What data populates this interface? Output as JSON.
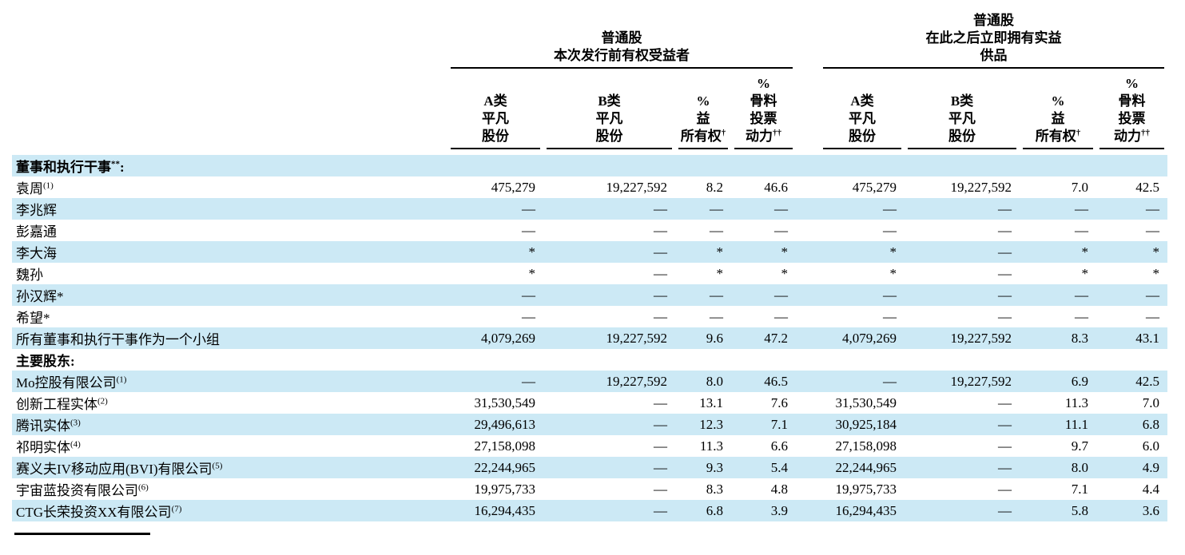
{
  "page": {
    "background": "#ffffff",
    "stripe_color": "#cce9f5"
  },
  "table": {
    "group_headers": [
      {
        "lines": [
          "普通股",
          "本次发行前有权受益者"
        ]
      },
      {
        "lines": [
          "普通股",
          "在此之后立即拥有实益",
          "供品"
        ]
      }
    ],
    "column_headers": [
      {
        "lines": [
          "A类",
          "平凡",
          "股份"
        ],
        "sup": ""
      },
      {
        "lines": [
          "B类",
          "平凡",
          "股份"
        ],
        "sup": ""
      },
      {
        "lines": [
          "%",
          "益",
          "所有权"
        ],
        "sup": "†"
      },
      {
        "lines": [
          "%",
          "骨料",
          "投票",
          "动力"
        ],
        "sup": "††"
      },
      {
        "lines": [
          "A类",
          "平凡",
          "股份"
        ],
        "sup": ""
      },
      {
        "lines": [
          "B类",
          "平凡",
          "股份"
        ],
        "sup": ""
      },
      {
        "lines": [
          "%",
          "益",
          "所有权"
        ],
        "sup": "†"
      },
      {
        "lines": [
          "%",
          "骨料",
          "投票",
          "动力"
        ],
        "sup": "††"
      }
    ],
    "rows": [
      {
        "label": "董事和执行干事",
        "sup": "**",
        "suffix": ":",
        "section": true,
        "shaded": true,
        "cells": [
          "",
          "",
          "",
          "",
          "",
          "",
          "",
          ""
        ]
      },
      {
        "label": "袁周",
        "sup": "(1)",
        "suffix": "",
        "section": false,
        "shaded": false,
        "cells": [
          "475,279",
          "19,227,592",
          "8.2",
          "46.6",
          "475,279",
          "19,227,592",
          "7.0",
          "42.5"
        ]
      },
      {
        "label": "李兆辉",
        "sup": "",
        "suffix": "",
        "section": false,
        "shaded": true,
        "cells": [
          "—",
          "—",
          "—",
          "—",
          "—",
          "—",
          "—",
          "—"
        ]
      },
      {
        "label": "彭嘉通",
        "sup": "",
        "suffix": "",
        "section": false,
        "shaded": false,
        "cells": [
          "—",
          "—",
          "—",
          "—",
          "—",
          "—",
          "—",
          "—"
        ]
      },
      {
        "label": "李大海",
        "sup": "",
        "suffix": "",
        "section": false,
        "shaded": true,
        "cells": [
          "*",
          "—",
          "*",
          "*",
          "*",
          "—",
          "*",
          "*"
        ]
      },
      {
        "label": "魏孙",
        "sup": "",
        "suffix": "",
        "section": false,
        "shaded": false,
        "cells": [
          "*",
          "—",
          "*",
          "*",
          "*",
          "—",
          "*",
          "*"
        ]
      },
      {
        "label": "孙汉辉*",
        "sup": "",
        "suffix": "",
        "section": false,
        "shaded": true,
        "cells": [
          "—",
          "—",
          "—",
          "—",
          "—",
          "—",
          "—",
          "—"
        ]
      },
      {
        "label": "希望*",
        "sup": "",
        "suffix": "",
        "section": false,
        "shaded": false,
        "cells": [
          "—",
          "—",
          "—",
          "—",
          "—",
          "—",
          "—",
          "—"
        ]
      },
      {
        "label": "所有董事和执行干事作为一个小组",
        "sup": "",
        "suffix": "",
        "section": false,
        "shaded": true,
        "cells": [
          "4,079,269",
          "19,227,592",
          "9.6",
          "47.2",
          "4,079,269",
          "19,227,592",
          "8.3",
          "43.1"
        ]
      },
      {
        "label": "主要股东",
        "sup": "",
        "suffix": ":",
        "section": true,
        "shaded": false,
        "cells": [
          "",
          "",
          "",
          "",
          "",
          "",
          "",
          ""
        ]
      },
      {
        "label": "Mo控股有限公司",
        "sup": "(1)",
        "suffix": "",
        "section": false,
        "shaded": true,
        "cells": [
          "—",
          "19,227,592",
          "8.0",
          "46.5",
          "—",
          "19,227,592",
          "6.9",
          "42.5"
        ]
      },
      {
        "label": "创新工程实体",
        "sup": "(2)",
        "suffix": "",
        "section": false,
        "shaded": false,
        "cells": [
          "31,530,549",
          "—",
          "13.1",
          "7.6",
          "31,530,549",
          "—",
          "11.3",
          "7.0"
        ]
      },
      {
        "label": "腾讯实体",
        "sup": "(3)",
        "suffix": "",
        "section": false,
        "shaded": true,
        "cells": [
          "29,496,613",
          "—",
          "12.3",
          "7.1",
          "30,925,184",
          "—",
          "11.1",
          "6.8"
        ]
      },
      {
        "label": "祁明实体",
        "sup": "(4)",
        "suffix": "",
        "section": false,
        "shaded": false,
        "cells": [
          "27,158,098",
          "—",
          "11.3",
          "6.6",
          "27,158,098",
          "—",
          "9.7",
          "6.0"
        ]
      },
      {
        "label": "赛义夫IV移动应用(BVI)有限公司",
        "sup": "(5)",
        "suffix": "",
        "section": false,
        "shaded": true,
        "cells": [
          "22,244,965",
          "—",
          "9.3",
          "5.4",
          "22,244,965",
          "—",
          "8.0",
          "4.9"
        ]
      },
      {
        "label": "宇宙蓝投资有限公司",
        "sup": "(6)",
        "suffix": "",
        "section": false,
        "shaded": false,
        "cells": [
          "19,975,733",
          "—",
          "8.3",
          "4.8",
          "19,975,733",
          "—",
          "7.1",
          "4.4"
        ]
      },
      {
        "label": "CTG长荣投资XX有限公司",
        "sup": "(7)",
        "suffix": "",
        "section": false,
        "shaded": true,
        "cells": [
          "16,294,435",
          "—",
          "6.8",
          "3.9",
          "16,294,435",
          "—",
          "5.8",
          "3.6"
        ]
      }
    ]
  }
}
